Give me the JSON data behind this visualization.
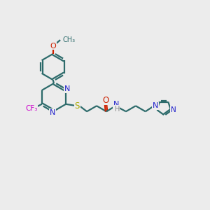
{
  "bg_color": "#ececec",
  "bond_color": "#2d6b6b",
  "N_color": "#2020cc",
  "O_color": "#cc2000",
  "S_color": "#aaaa00",
  "F_color": "#cc00cc",
  "H_color": "#888888",
  "line_width": 1.6,
  "figsize": [
    3.0,
    3.0
  ],
  "dpi": 100,
  "xlim": [
    0,
    12
  ],
  "ylim": [
    0,
    10
  ]
}
